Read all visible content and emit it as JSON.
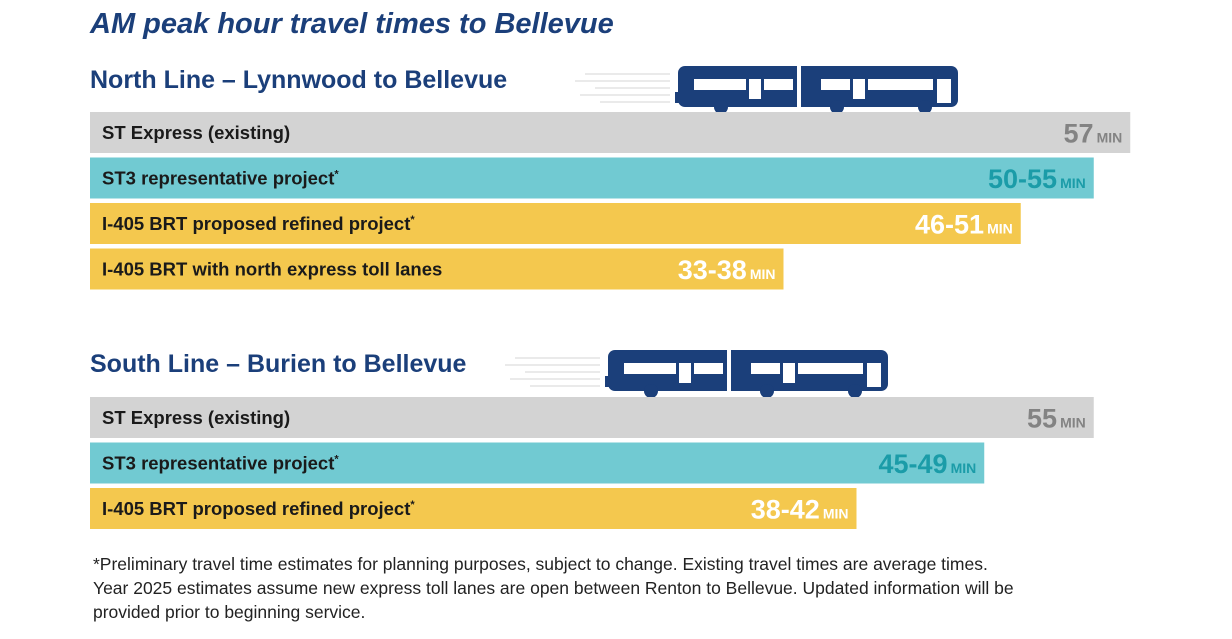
{
  "title": "AM peak hour travel times to Bellevue",
  "colors": {
    "navy": "#1b3f7a",
    "existing": "#d3d3d3",
    "st3": "#71cad2",
    "brt": "#f4c84e",
    "value_existing": "#838383",
    "value_st3": "#1b9ca8",
    "value_brt": "#ffffff"
  },
  "chart_data": [
    {
      "type": "bar",
      "orientation": "horizontal",
      "title": "North Line – Lynnwood to Bellevue",
      "unit": "MIN",
      "categories": [
        "ST Express (existing)",
        "ST3 representative project",
        "I-405 BRT proposed refined project",
        "I-405 BRT with north express toll lanes"
      ],
      "asterisk": [
        false,
        true,
        true,
        false
      ],
      "value_labels": [
        "57",
        "50-55",
        "46-51",
        "33-38"
      ],
      "values": [
        57,
        55,
        51,
        38
      ],
      "ranges": [
        [
          57,
          57
        ],
        [
          50,
          55
        ],
        [
          46,
          51
        ],
        [
          33,
          38
        ]
      ],
      "colors": [
        "#d3d3d3",
        "#71cad2",
        "#f4c84e",
        "#f4c84e"
      ],
      "label_colors": [
        "#838383",
        "#1b9ca8",
        "#ffffff",
        "#ffffff"
      ]
    },
    {
      "type": "bar",
      "orientation": "horizontal",
      "title": "South Line – Burien to Bellevue",
      "unit": "MIN",
      "categories": [
        "ST Express (existing)",
        "ST3 representative project",
        "I-405 BRT proposed refined project"
      ],
      "asterisk": [
        false,
        true,
        true
      ],
      "value_labels": [
        "55",
        "45-49",
        "38-42"
      ],
      "values": [
        55,
        49,
        42
      ],
      "ranges": [
        [
          55,
          55
        ],
        [
          45,
          49
        ],
        [
          38,
          42
        ]
      ],
      "colors": [
        "#d3d3d3",
        "#71cad2",
        "#f4c84e"
      ],
      "label_colors": [
        "#838383",
        "#1b9ca8",
        "#ffffff"
      ]
    }
  ],
  "footnote": [
    "*Preliminary travel time estimates for planning purposes, subject to change. Existing travel times are average times.",
    "Year 2025 estimates assume new express toll lanes are open between Renton to Bellevue. Updated information will be",
    "provided prior to beginning service."
  ]
}
